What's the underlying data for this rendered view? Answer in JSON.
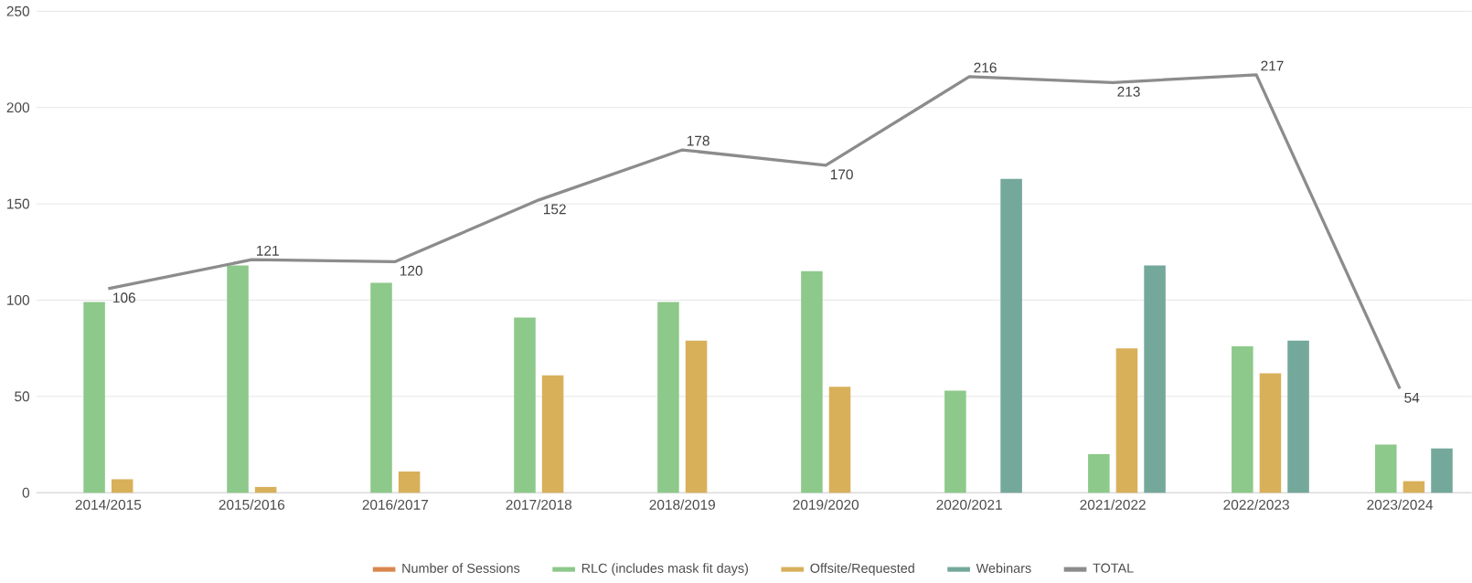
{
  "chart_data": {
    "type": "bar",
    "categories": [
      "2014/2015",
      "2015/2016",
      "2016/2017",
      "2017/2018",
      "2018/2019",
      "2019/2020",
      "2020/2021",
      "2021/2022",
      "2022/2023",
      "2023/2024"
    ],
    "series": [
      {
        "name": "Number of Sessions",
        "color": "#d9874f",
        "values": [
          null,
          null,
          null,
          null,
          null,
          null,
          null,
          null,
          null,
          null
        ]
      },
      {
        "name": "RLC (includes mask fit days)",
        "color": "#8dc98a",
        "values": [
          99,
          118,
          109,
          91,
          99,
          115,
          53,
          20,
          76,
          25
        ]
      },
      {
        "name": "Offsite/Requested",
        "color": "#d8b05a",
        "values": [
          7,
          3,
          11,
          61,
          79,
          55,
          0,
          75,
          62,
          6
        ]
      },
      {
        "name": "Webinars",
        "color": "#74a89b",
        "values": [
          0,
          0,
          0,
          0,
          0,
          0,
          163,
          118,
          79,
          23
        ]
      },
      {
        "name": "TOTAL",
        "type": "line",
        "color": "#8c8c8c",
        "values": [
          106,
          121,
          120,
          152,
          178,
          170,
          216,
          213,
          217,
          54
        ],
        "value_labels": [
          "106",
          "121",
          "120",
          "152",
          "178",
          "170",
          "216",
          "213",
          "217",
          "54"
        ]
      }
    ],
    "ylim": [
      0,
      250
    ],
    "yticks": [
      0,
      50,
      100,
      150,
      200,
      250
    ],
    "grid": "y",
    "legend": "bottom"
  }
}
